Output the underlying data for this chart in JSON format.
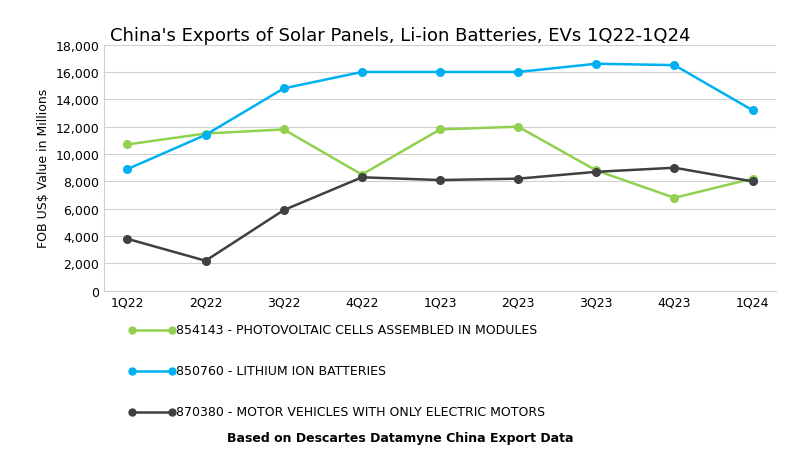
{
  "title": "China's Exports of Solar Panels, Li-ion Batteries, EVs 1Q22-1Q24",
  "ylabel": "FOB US$ Value in Millions",
  "footnote": "Based on Descartes Datamyne China Export Data",
  "quarters": [
    "1Q22",
    "2Q22",
    "3Q22",
    "4Q22",
    "1Q23",
    "2Q23",
    "3Q23",
    "4Q23",
    "1Q24"
  ],
  "solar": [
    10700,
    11500,
    11800,
    8500,
    11800,
    12000,
    8800,
    6800,
    8200
  ],
  "liion": [
    8900,
    11400,
    14800,
    16000,
    16000,
    16000,
    16600,
    16500,
    13200
  ],
  "ev": [
    3800,
    2200,
    5900,
    8300,
    8100,
    8200,
    8700,
    9000,
    8000
  ],
  "solar_color": "#92d050",
  "liion_color": "#00b0f0",
  "ev_color": "#404040",
  "ylim": [
    0,
    18000
  ],
  "yticks": [
    0,
    2000,
    4000,
    6000,
    8000,
    10000,
    12000,
    14000,
    16000,
    18000
  ],
  "legend_labels": [
    "854143 - PHOTOVOLTAIC CELLS ASSEMBLED IN MODULES",
    "850760 - LITHIUM ION BATTERIES",
    "870380 - MOTOR VEHICLES WITH ONLY ELECTRIC MOTORS"
  ],
  "bg_color": "#ffffff",
  "grid_color": "#d0d0d0",
  "title_fontsize": 13,
  "axis_label_fontsize": 9,
  "tick_fontsize": 9,
  "legend_fontsize": 9,
  "footnote_fontsize": 9
}
